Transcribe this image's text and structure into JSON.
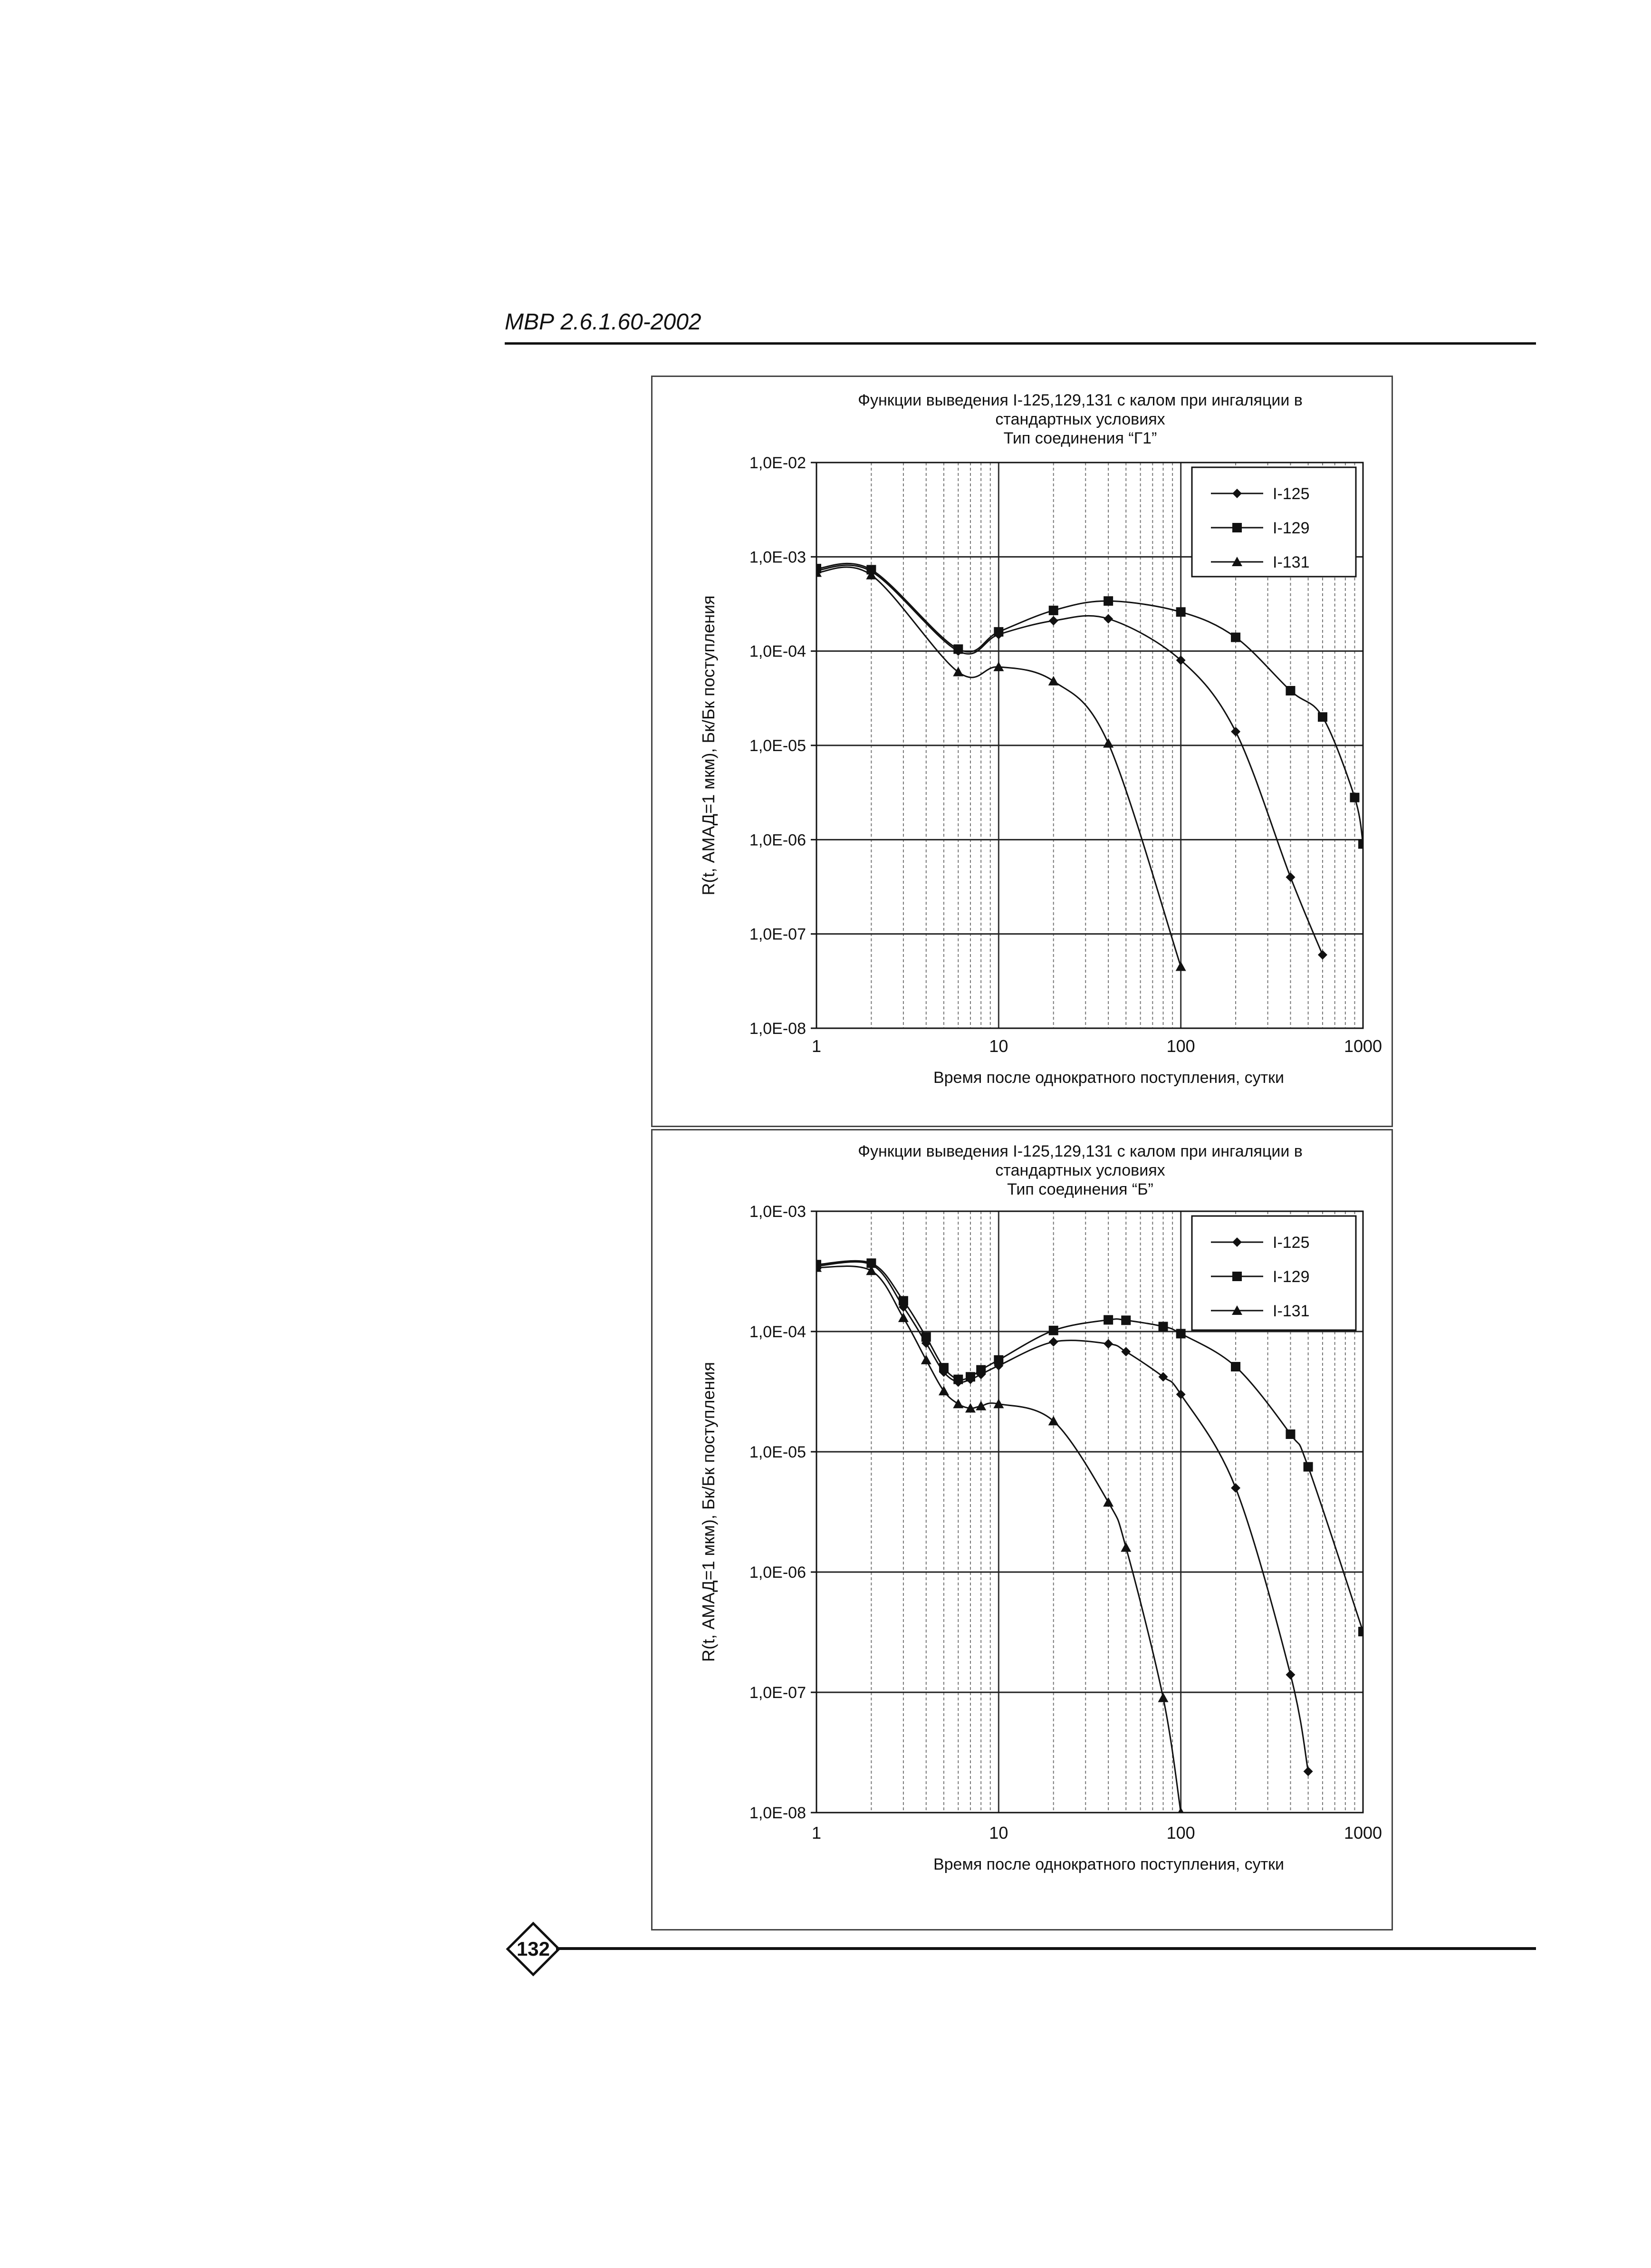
{
  "header": {
    "doc_code": "МВР 2.6.1.60-2002"
  },
  "footer": {
    "page_number": "132"
  },
  "chart_data": [
    {
      "type": "line",
      "title": [
        "Функции выведения I-125,129,131 с калом при ингаляции в",
        "стандартных условиях",
        "Тип соединения “Г1”"
      ],
      "xlabel": "Время после однократного поступления, сутки",
      "ylabel": "R(t, АМАД=1 мкм), Бк/Бк поступления",
      "x_scale": "log",
      "y_scale": "log",
      "xlim": [
        1,
        1000
      ],
      "ylim": [
        1e-08,
        0.01
      ],
      "x_ticks": [
        1,
        10,
        100,
        1000
      ],
      "x_tick_labels": [
        "1",
        "10",
        "100",
        "1000"
      ],
      "y_ticks": [
        1e-08,
        1e-07,
        1e-06,
        1e-05,
        0.0001,
        0.001,
        0.01
      ],
      "y_tick_labels": [
        "1,0E-08",
        "1,0E-07",
        "1,0E-06",
        "1,0E-05",
        "1,0E-04",
        "1,0E-03",
        "1,0E-02"
      ],
      "grid": true,
      "legend_position": "top-right",
      "series": [
        {
          "name": "I-125",
          "marker": "diamond",
          "x": [
            1,
            2,
            6,
            10,
            20,
            40,
            100,
            200,
            400,
            600
          ],
          "y": [
            0.00072,
            0.0007,
            0.0001,
            0.00015,
            0.00021,
            0.00022,
            8e-05,
            1.4e-05,
            4e-07,
            6e-08
          ]
        },
        {
          "name": "I-129",
          "marker": "square",
          "x": [
            1,
            2,
            6,
            10,
            20,
            40,
            100,
            200,
            400,
            600,
            900,
            1000
          ],
          "y": [
            0.00075,
            0.00073,
            0.000105,
            0.00016,
            0.00027,
            0.00034,
            0.00026,
            0.00014,
            3.8e-05,
            2e-05,
            2.8e-06,
            9e-07
          ]
        },
        {
          "name": "I-131",
          "marker": "triangle",
          "x": [
            1,
            2,
            6,
            10,
            20,
            40,
            100
          ],
          "y": [
            0.00068,
            0.00064,
            6e-05,
            6.8e-05,
            4.8e-05,
            1.05e-05,
            4.5e-08
          ]
        }
      ]
    },
    {
      "type": "line",
      "title": [
        "Функции выведения I-125,129,131 с калом при ингаляции в",
        "стандартных условиях",
        "Тип соединения “Б”"
      ],
      "xlabel": "Время после однократного поступления, сутки",
      "ylabel": "R(t, АМАД=1 мкм), Бк/Бк поступления",
      "x_scale": "log",
      "y_scale": "log",
      "xlim": [
        1,
        1000
      ],
      "ylim": [
        1e-08,
        0.001
      ],
      "x_ticks": [
        1,
        10,
        100,
        1000
      ],
      "x_tick_labels": [
        "1",
        "10",
        "100",
        "1000"
      ],
      "y_ticks": [
        1e-08,
        1e-07,
        1e-06,
        1e-05,
        0.0001,
        0.001
      ],
      "y_tick_labels": [
        "1,0E-08",
        "1,0E-07",
        "1,0E-06",
        "1,0E-05",
        "1,0E-04",
        "1,0E-03"
      ],
      "grid": true,
      "legend_position": "top-right",
      "series": [
        {
          "name": "I-125",
          "marker": "diamond",
          "x": [
            1,
            2,
            3,
            4,
            5,
            6,
            7,
            8,
            10,
            20,
            40,
            50,
            80,
            100,
            200,
            400,
            500
          ],
          "y": [
            0.00035,
            0.00036,
            0.00016,
            8e-05,
            4.6e-05,
            3.8e-05,
            4e-05,
            4.4e-05,
            5.2e-05,
            8.2e-05,
            7.9e-05,
            6.8e-05,
            4.2e-05,
            3e-05,
            5e-06,
            1.4e-07,
            2.2e-08
          ]
        },
        {
          "name": "I-129",
          "marker": "square",
          "x": [
            1,
            2,
            3,
            4,
            5,
            6,
            7,
            8,
            10,
            20,
            40,
            50,
            80,
            100,
            200,
            400,
            500,
            1000
          ],
          "y": [
            0.00036,
            0.00037,
            0.00018,
            9e-05,
            5e-05,
            4e-05,
            4.2e-05,
            4.8e-05,
            5.8e-05,
            0.000102,
            0.000125,
            0.000124,
            0.00011,
            9.6e-05,
            5.1e-05,
            1.4e-05,
            7.5e-06,
            3.2e-07
          ]
        },
        {
          "name": "I-131",
          "marker": "triangle",
          "x": [
            1,
            2,
            3,
            4,
            5,
            6,
            7,
            8,
            10,
            20,
            40,
            50,
            80,
            100
          ],
          "y": [
            0.00034,
            0.00032,
            0.00013,
            5.8e-05,
            3.2e-05,
            2.5e-05,
            2.3e-05,
            2.4e-05,
            2.5e-05,
            1.8e-05,
            3.8e-06,
            1.6e-06,
            9e-08,
            1e-08
          ]
        }
      ]
    }
  ]
}
